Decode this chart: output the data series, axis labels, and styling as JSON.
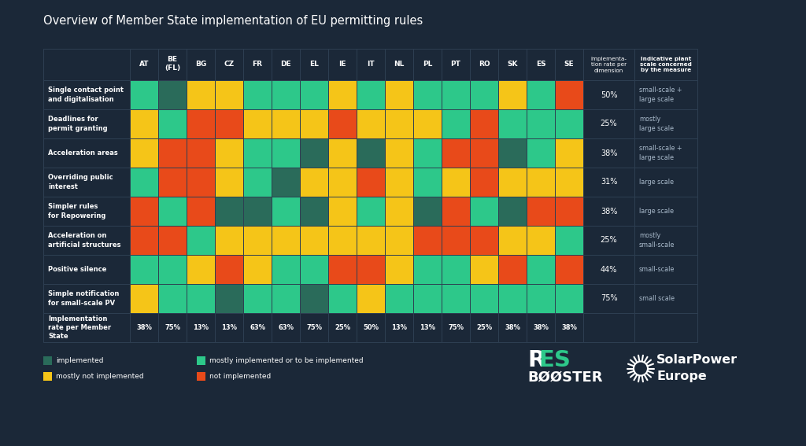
{
  "title": "Overview of Member State implementation of EU permitting rules",
  "background_color": "#1b2838",
  "columns": [
    "AT",
    "BE\n(FL)",
    "BG",
    "CZ",
    "FR",
    "DE",
    "EL",
    "IE",
    "IT",
    "NL",
    "PL",
    "PT",
    "RO",
    "SK",
    "ES",
    "SE"
  ],
  "rows": [
    "Single contact point\nand digitalisation",
    "Deadlines for\npermit granting",
    "Acceleration areas",
    "Overriding public\ninterest",
    "Simpler rules\nfor Repowering",
    "Acceleration on\nartificial structures",
    "Positive silence",
    "Simple notification\nfor small-scale PV"
  ],
  "impl_rates_row": [
    "38%",
    "75%",
    "13%",
    "13%",
    "63%",
    "63%",
    "75%",
    "25%",
    "50%",
    "13%",
    "13%",
    "75%",
    "25%",
    "38%",
    "38%",
    "38%"
  ],
  "impl_rates_col": [
    "50%",
    "25%",
    "38%",
    "31%",
    "38%",
    "25%",
    "44%",
    "75%"
  ],
  "plant_scale": [
    "small-scale +\nlarge scale",
    "mostly\nlarge scale",
    "small-scale +\nlarge scale",
    "large scale",
    "large scale",
    "mostly\nsmall-scale",
    "small-scale",
    "small scale"
  ],
  "color_map": {
    "1": "#2a6b5a",
    "2": "#2dc88a",
    "3": "#f5c518",
    "4": "#e84a1a"
  },
  "grid": [
    [
      2,
      1,
      3,
      3,
      2,
      2,
      2,
      3,
      2,
      3,
      2,
      2,
      2,
      3,
      2,
      4
    ],
    [
      3,
      2,
      4,
      4,
      3,
      3,
      3,
      4,
      3,
      3,
      3,
      2,
      4,
      2,
      2,
      2
    ],
    [
      3,
      4,
      4,
      3,
      2,
      2,
      1,
      3,
      1,
      3,
      2,
      4,
      4,
      1,
      2,
      3
    ],
    [
      2,
      4,
      4,
      3,
      2,
      1,
      3,
      3,
      4,
      3,
      2,
      3,
      4,
      3,
      3,
      3
    ],
    [
      4,
      2,
      4,
      1,
      1,
      2,
      1,
      3,
      2,
      3,
      1,
      4,
      2,
      1,
      4,
      4
    ],
    [
      4,
      4,
      2,
      3,
      3,
      3,
      3,
      3,
      3,
      3,
      4,
      4,
      4,
      3,
      3,
      2
    ],
    [
      2,
      2,
      3,
      4,
      3,
      2,
      2,
      4,
      4,
      3,
      2,
      2,
      3,
      4,
      2,
      4
    ],
    [
      3,
      2,
      2,
      1,
      2,
      2,
      1,
      2,
      3,
      2,
      2,
      2,
      2,
      2,
      2,
      2
    ]
  ],
  "legend": [
    {
      "label": "implemented",
      "color": "#2a6b5a"
    },
    {
      "label": "mostly implemented or to be implemented",
      "color": "#2dc88a"
    },
    {
      "label": "mostly not implemented",
      "color": "#f5c518"
    },
    {
      "label": "not implemented",
      "color": "#e84a1a"
    }
  ],
  "text_light": "#ffffff",
  "text_gray": "#aabbcc",
  "border_color": "#2e3f52"
}
